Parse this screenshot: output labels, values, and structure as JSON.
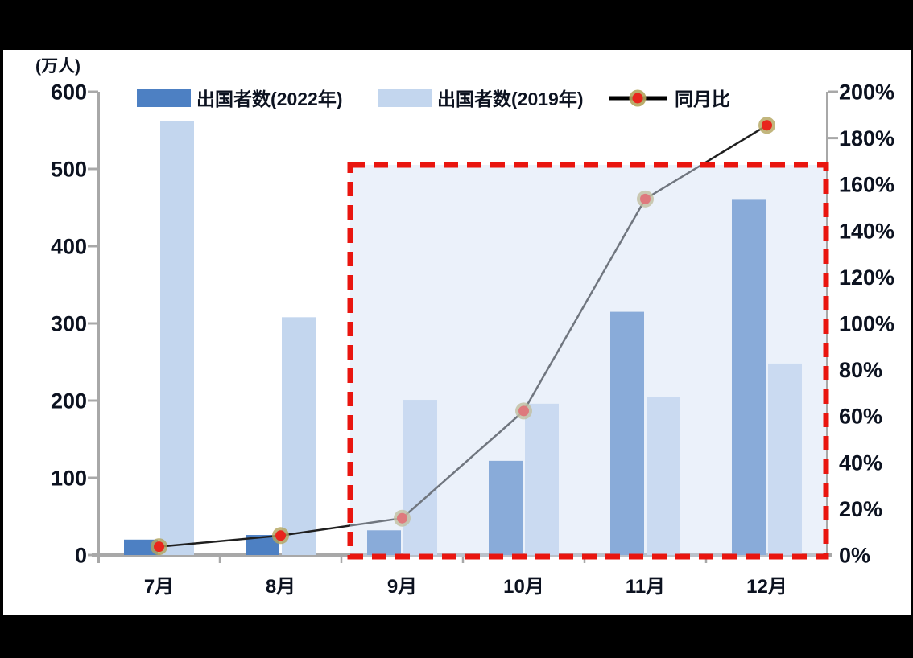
{
  "legend": {
    "series_2022": "出国者数(2022年)",
    "series_2019": "出国者数(2019年)",
    "ratio": "同月比"
  },
  "colors": {
    "bar_2022": "#4d80c3",
    "bar_2019": "#c3d6ee",
    "ratio_line": "#1f1f1f",
    "ratio_marker_fill": "#e8251d",
    "ratio_marker_ring": "#b3a45c",
    "highlight_border": "#e9150f",
    "highlight_fill_rgba": "rgba(210,225,245,0.45)",
    "axis": "#a8a8a8",
    "text": "#0c1220",
    "canvas": "#ffffff"
  },
  "chart_data": {
    "type": "bar",
    "subtype": "combo-bar-line-dual-axis",
    "title": "",
    "categories": [
      "7月",
      "8月",
      "9月",
      "10月",
      "11月",
      "12月"
    ],
    "series": [
      {
        "name": "出国者数(2022年)",
        "type": "bar",
        "axis": "left",
        "unit": "万人",
        "values": [
          20,
          26,
          32,
          122,
          315,
          460
        ]
      },
      {
        "name": "出国者数(2019年)",
        "type": "bar",
        "axis": "left",
        "unit": "万人",
        "values": [
          562,
          308,
          201,
          196,
          205,
          248
        ]
      },
      {
        "name": "同月比",
        "type": "line",
        "axis": "right",
        "unit": "%",
        "values": [
          3.6,
          8.4,
          15.9,
          62.2,
          153.7,
          185.5
        ]
      }
    ],
    "left_axis": {
      "label": "(万人)",
      "min": 0,
      "max": 600,
      "tick_step": 100,
      "ticks": [
        0,
        100,
        200,
        300,
        400,
        500,
        600
      ]
    },
    "right_axis": {
      "min": 0,
      "max": 200,
      "tick_step": 20,
      "tick_labels": [
        "0%",
        "20%",
        "40%",
        "60%",
        "80%",
        "100%",
        "120%",
        "140%",
        "160%",
        "180%",
        "200%"
      ]
    },
    "highlight": {
      "categories": [
        "9月",
        "10月",
        "11月",
        "12月"
      ],
      "style": "thick red dashed box with light blue tint fill"
    },
    "legend_position": "top",
    "grid": false
  }
}
